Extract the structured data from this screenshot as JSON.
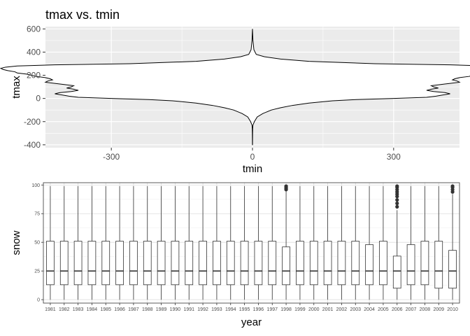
{
  "chart_data": [
    {
      "type": "violin",
      "title": "tmax vs. tmin",
      "xlabel": "tmin",
      "ylabel": "tmax",
      "xlim": [
        -440,
        440
      ],
      "ylim": [
        -425,
        620
      ],
      "x_ticks": [
        -300,
        0,
        300
      ],
      "y_ticks": [
        -400,
        -200,
        0,
        200,
        400,
        600
      ],
      "background": "#ebebeb",
      "grid": true,
      "width_profile": {
        "y": [
          600,
          500,
          420,
          380,
          360,
          340,
          320,
          300,
          290,
          280,
          270,
          260,
          250,
          240,
          230,
          220,
          210,
          200,
          190,
          180,
          170,
          160,
          150,
          140,
          130,
          120,
          110,
          100,
          90,
          80,
          70,
          60,
          50,
          40,
          30,
          20,
          10,
          0,
          -10,
          -20,
          -40,
          -60,
          -80,
          -100,
          -130,
          -160,
          -200,
          -230,
          -260,
          -300,
          -350,
          -400
        ],
        "half_width": [
          0,
          1,
          3,
          8,
          25,
          60,
          120,
          260,
          420,
          500,
          525,
          535,
          530,
          520,
          505,
          500,
          480,
          470,
          460,
          440,
          430,
          425,
          435,
          440,
          420,
          400,
          380,
          385,
          395,
          380,
          370,
          385,
          410,
          420,
          405,
          390,
          370,
          300,
          220,
          170,
          120,
          85,
          60,
          40,
          22,
          10,
          4,
          1,
          0.5,
          0.3,
          0.2,
          0.1
        ]
      }
    },
    {
      "type": "boxplot",
      "xlabel": "year",
      "ylabel": "snow",
      "ylim": [
        -3,
        102
      ],
      "y_ticks": [
        0,
        25,
        50,
        75,
        100
      ],
      "background": "#ffffff",
      "grid": true,
      "categories": [
        "1981",
        "1982",
        "1983",
        "1984",
        "1985",
        "1986",
        "1987",
        "1988",
        "1989",
        "1990",
        "1991",
        "1992",
        "1993",
        "1994",
        "1995",
        "1996",
        "1997",
        "1998",
        "1999",
        "2000",
        "2001",
        "2002",
        "2003",
        "2004",
        "2005",
        "2006",
        "2007",
        "2008",
        "2009",
        "2010"
      ],
      "boxes": [
        {
          "min": 0,
          "q1": 13,
          "median": 25,
          "q3": 51,
          "max": 99,
          "outliers": []
        },
        {
          "min": 0,
          "q1": 13,
          "median": 25,
          "q3": 51,
          "max": 99,
          "outliers": []
        },
        {
          "min": 0,
          "q1": 13,
          "median": 25,
          "q3": 51,
          "max": 99,
          "outliers": []
        },
        {
          "min": 0,
          "q1": 13,
          "median": 25,
          "q3": 51,
          "max": 99,
          "outliers": []
        },
        {
          "min": 0,
          "q1": 13,
          "median": 25,
          "q3": 51,
          "max": 99,
          "outliers": []
        },
        {
          "min": 0,
          "q1": 13,
          "median": 25,
          "q3": 51,
          "max": 99,
          "outliers": []
        },
        {
          "min": 0,
          "q1": 13,
          "median": 25,
          "q3": 51,
          "max": 99,
          "outliers": []
        },
        {
          "min": 0,
          "q1": 13,
          "median": 25,
          "q3": 51,
          "max": 99,
          "outliers": []
        },
        {
          "min": 0,
          "q1": 13,
          "median": 25,
          "q3": 51,
          "max": 99,
          "outliers": []
        },
        {
          "min": 0,
          "q1": 13,
          "median": 25,
          "q3": 51,
          "max": 99,
          "outliers": []
        },
        {
          "min": 0,
          "q1": 13,
          "median": 25,
          "q3": 51,
          "max": 99,
          "outliers": []
        },
        {
          "min": 0,
          "q1": 13,
          "median": 25,
          "q3": 51,
          "max": 99,
          "outliers": []
        },
        {
          "min": 0,
          "q1": 13,
          "median": 25,
          "q3": 51,
          "max": 99,
          "outliers": []
        },
        {
          "min": 0,
          "q1": 13,
          "median": 25,
          "q3": 51,
          "max": 99,
          "outliers": []
        },
        {
          "min": 0,
          "q1": 13,
          "median": 25,
          "q3": 51,
          "max": 99,
          "outliers": []
        },
        {
          "min": 0,
          "q1": 13,
          "median": 25,
          "q3": 51,
          "max": 99,
          "outliers": []
        },
        {
          "min": 0,
          "q1": 13,
          "median": 25,
          "q3": 51,
          "max": 99,
          "outliers": []
        },
        {
          "min": 0,
          "q1": 13,
          "median": 25,
          "q3": 46,
          "max": 95,
          "outliers": [
            96,
            97,
            98,
            99
          ]
        },
        {
          "min": 0,
          "q1": 13,
          "median": 25,
          "q3": 51,
          "max": 99,
          "outliers": []
        },
        {
          "min": 0,
          "q1": 13,
          "median": 25,
          "q3": 51,
          "max": 99,
          "outliers": []
        },
        {
          "min": 0,
          "q1": 13,
          "median": 25,
          "q3": 51,
          "max": 99,
          "outliers": []
        },
        {
          "min": 0,
          "q1": 13,
          "median": 25,
          "q3": 51,
          "max": 99,
          "outliers": []
        },
        {
          "min": 0,
          "q1": 13,
          "median": 25,
          "q3": 51,
          "max": 99,
          "outliers": []
        },
        {
          "min": 0,
          "q1": 13,
          "median": 25,
          "q3": 48,
          "max": 99,
          "outliers": []
        },
        {
          "min": 0,
          "q1": 13,
          "median": 25,
          "q3": 51,
          "max": 99,
          "outliers": []
        },
        {
          "min": 0,
          "q1": 10,
          "median": 25,
          "q3": 38,
          "max": 78,
          "outliers": [
            81,
            84,
            87,
            90,
            92,
            94,
            96,
            98,
            99
          ]
        },
        {
          "min": 0,
          "q1": 13,
          "median": 25,
          "q3": 48,
          "max": 99,
          "outliers": []
        },
        {
          "min": 0,
          "q1": 13,
          "median": 25,
          "q3": 51,
          "max": 99,
          "outliers": []
        },
        {
          "min": 0,
          "q1": 10,
          "median": 25,
          "q3": 51,
          "max": 99,
          "outliers": []
        },
        {
          "min": 0,
          "q1": 10,
          "median": 25,
          "q3": 43,
          "max": 92,
          "outliers": [
            94,
            96,
            98,
            99
          ]
        }
      ]
    }
  ]
}
